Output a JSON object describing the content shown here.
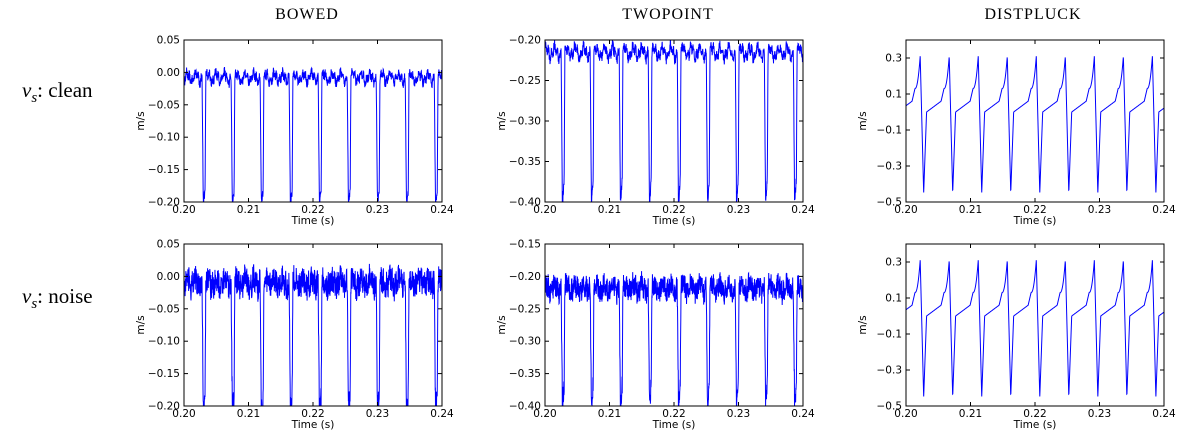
{
  "column_titles": [
    "BOWED",
    "TWOPOINT",
    "DISTPLUCK"
  ],
  "row_labels": [
    {
      "var": "v",
      "sub": "s",
      "text": ": clean"
    },
    {
      "var": "v",
      "sub": "s",
      "text": ": noise"
    }
  ],
  "colors": {
    "line": "#0000ff",
    "axes": "#000000"
  },
  "chart_data": [
    {
      "id": "bowed-clean",
      "type": "line",
      "title": "",
      "xlabel": "Time (s)",
      "ylabel": "m/s",
      "xlim": [
        0.2,
        0.24
      ],
      "ylim": [
        -0.2,
        0.05
      ],
      "xticks": [
        0.2,
        0.21,
        0.22,
        0.23,
        0.24
      ],
      "xtick_labels": [
        "0.20",
        "0.21",
        "0.22",
        "0.23",
        "0.24"
      ],
      "yticks": [
        -0.2,
        -0.15,
        -0.1,
        -0.05,
        0.0,
        0.05
      ],
      "ytick_labels": [
        "−0.20",
        "−0.15",
        "−0.10",
        "−0.05",
        "0.00",
        "0.05"
      ],
      "wave": {
        "kind": "bowed",
        "period": 0.0045,
        "first_peak": 0.2025,
        "base": -0.008,
        "low": -0.19,
        "noise": 0.007
      }
    },
    {
      "id": "twopoint-clean",
      "type": "line",
      "title": "",
      "xlabel": "Time (s)",
      "ylabel": "m/s",
      "xlim": [
        0.2,
        0.24
      ],
      "ylim": [
        -0.4,
        -0.2
      ],
      "xticks": [
        0.2,
        0.21,
        0.22,
        0.23,
        0.24
      ],
      "xtick_labels": [
        "0.20",
        "0.21",
        "0.22",
        "0.23",
        "0.24"
      ],
      "yticks": [
        -0.4,
        -0.35,
        -0.3,
        -0.25,
        -0.2
      ],
      "ytick_labels": [
        "−0.40",
        "−0.35",
        "−0.30",
        "−0.25",
        "−0.20"
      ],
      "wave": {
        "kind": "twopoint",
        "period": 0.0045,
        "first_peak": 0.2022,
        "base": -0.215,
        "low": -0.385,
        "noise": 0.006
      }
    },
    {
      "id": "distpluck-clean",
      "type": "line",
      "title": "",
      "xlabel": "Time (s)",
      "ylabel": "m/s",
      "xlim": [
        0.2,
        0.24
      ],
      "ylim": [
        -0.5,
        0.4
      ],
      "xticks": [
        0.2,
        0.21,
        0.22,
        0.23,
        0.24
      ],
      "xtick_labels": [
        "0.20",
        "0.21",
        "0.22",
        "0.23",
        "0.24"
      ],
      "yticks": [
        -0.5,
        -0.3,
        -0.1,
        0.1,
        0.3
      ],
      "ytick_labels": [
        "−0.5",
        "−0.3",
        "−0.1",
        "0.1",
        "0.3"
      ],
      "wave": {
        "kind": "pluck",
        "period": 0.0045,
        "first_peak": 0.2022,
        "high": 0.31,
        "low": -0.45,
        "noise": 0
      }
    },
    {
      "id": "bowed-noise",
      "type": "line",
      "title": "",
      "xlabel": "Time (s)",
      "ylabel": "m/s",
      "xlim": [
        0.2,
        0.24
      ],
      "ylim": [
        -0.2,
        0.05
      ],
      "xticks": [
        0.2,
        0.21,
        0.22,
        0.23,
        0.24
      ],
      "xtick_labels": [
        "0.20",
        "0.21",
        "0.22",
        "0.23",
        "0.24"
      ],
      "yticks": [
        -0.2,
        -0.15,
        -0.1,
        -0.05,
        0.0,
        0.05
      ],
      "ytick_labels": [
        "−0.20",
        "−0.15",
        "−0.10",
        "−0.05",
        "0.00",
        "0.05"
      ],
      "wave": {
        "kind": "bowed",
        "period": 0.0045,
        "first_peak": 0.2025,
        "base": -0.01,
        "low": -0.195,
        "noise": 0.02
      }
    },
    {
      "id": "twopoint-noise",
      "type": "line",
      "title": "",
      "xlabel": "Time (s)",
      "ylabel": "m/s",
      "xlim": [
        0.2,
        0.24
      ],
      "ylim": [
        -0.4,
        -0.15
      ],
      "xticks": [
        0.2,
        0.21,
        0.22,
        0.23,
        0.24
      ],
      "xtick_labels": [
        "0.20",
        "0.21",
        "0.22",
        "0.23",
        "0.24"
      ],
      "yticks": [
        -0.4,
        -0.35,
        -0.3,
        -0.25,
        -0.2,
        -0.15
      ],
      "ytick_labels": [
        "−0.40",
        "−0.35",
        "−0.30",
        "−0.25",
        "−0.20",
        "−0.15"
      ],
      "wave": {
        "kind": "twopoint",
        "period": 0.0045,
        "first_peak": 0.2022,
        "base": -0.218,
        "low": -0.38,
        "noise": 0.017
      }
    },
    {
      "id": "distpluck-noise",
      "type": "line",
      "title": "",
      "xlabel": "Time (s)",
      "ylabel": "m/s",
      "xlim": [
        0.2,
        0.24
      ],
      "ylim": [
        -0.5,
        0.4
      ],
      "xticks": [
        0.2,
        0.21,
        0.22,
        0.23,
        0.24
      ],
      "xtick_labels": [
        "0.20",
        "0.21",
        "0.22",
        "0.23",
        "0.24"
      ],
      "yticks": [
        -0.5,
        -0.3,
        -0.1,
        0.1,
        0.3
      ],
      "ytick_labels": [
        "−0.5",
        "−0.3",
        "−0.1",
        "0.1",
        "0.3"
      ],
      "wave": {
        "kind": "pluck",
        "period": 0.0045,
        "first_peak": 0.2022,
        "high": 0.31,
        "low": -0.45,
        "noise": 0
      }
    }
  ]
}
